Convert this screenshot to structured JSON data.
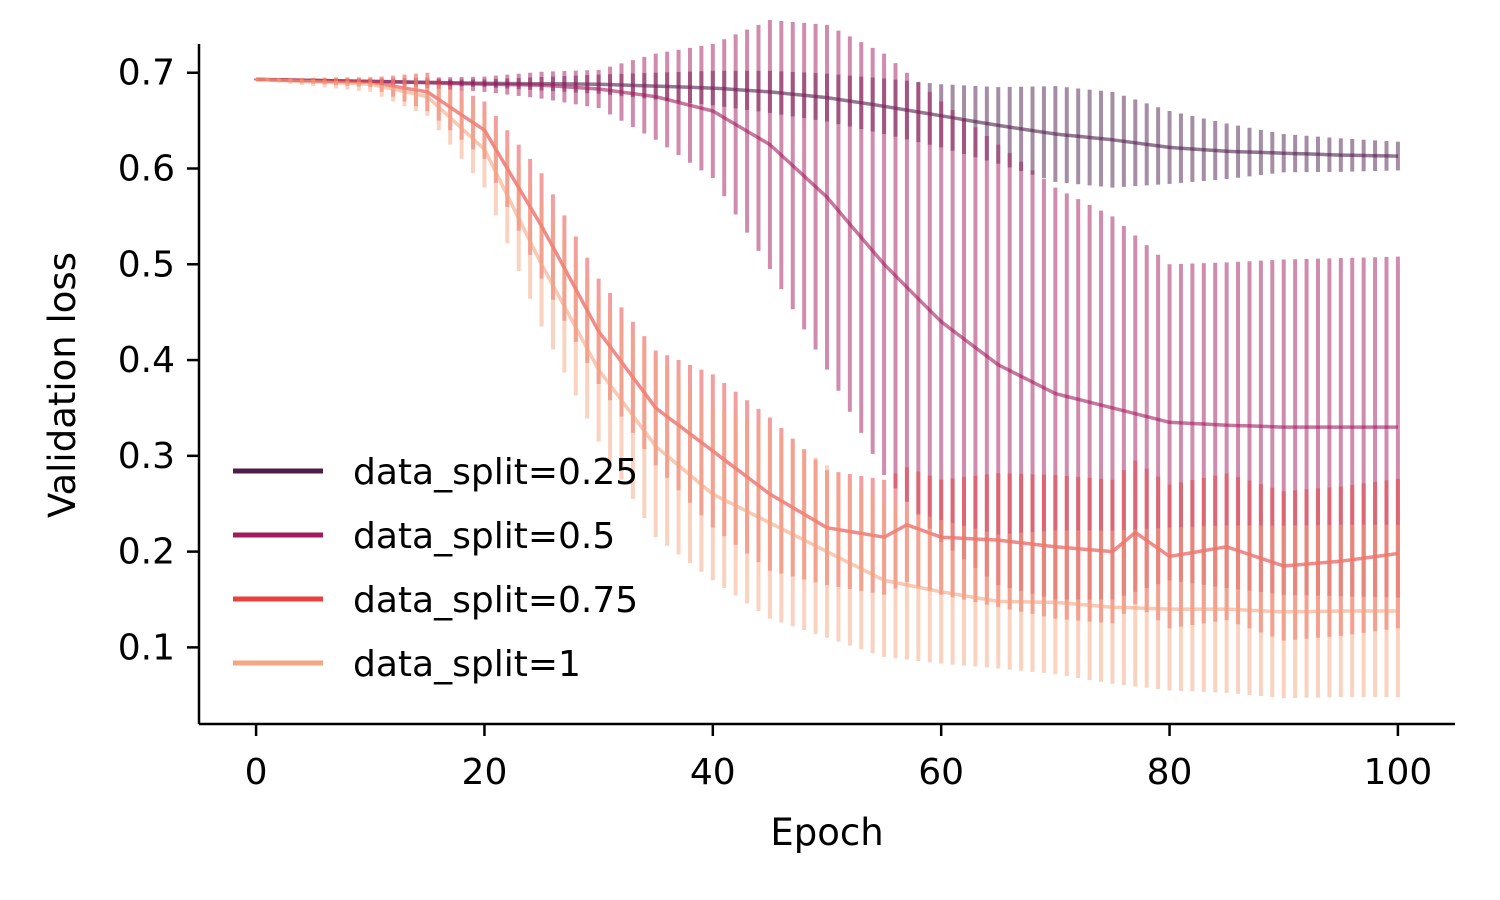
{
  "chart_data": {
    "type": "line",
    "title": "",
    "xlabel": "Epoch",
    "ylabel": "Validation loss",
    "xlim": [
      -5,
      105
    ],
    "ylim": [
      0.02,
      0.73
    ],
    "xticks": [
      0,
      20,
      40,
      60,
      80,
      100
    ],
    "yticks": [
      0.1,
      0.2,
      0.3,
      0.4,
      0.5,
      0.6,
      0.7
    ],
    "xtick_labels": [
      "0",
      "20",
      "40",
      "60",
      "80",
      "100"
    ],
    "ytick_labels": [
      "0.1",
      "0.2",
      "0.3",
      "0.4",
      "0.5",
      "0.6",
      "0.7"
    ],
    "grid": false,
    "legend_position": "lower-left",
    "error_bars": "vertical",
    "series": [
      {
        "name": "data_split=0.25",
        "color": "#4c1d4b",
        "anchors": [
          [
            0,
            0.693
          ],
          [
            10,
            0.691
          ],
          [
            20,
            0.689
          ],
          [
            30,
            0.688
          ],
          [
            40,
            0.684
          ],
          [
            45,
            0.68
          ],
          [
            50,
            0.674
          ],
          [
            55,
            0.665
          ],
          [
            60,
            0.655
          ],
          [
            65,
            0.645
          ],
          [
            70,
            0.636
          ],
          [
            75,
            0.63
          ],
          [
            80,
            0.622
          ],
          [
            85,
            0.618
          ],
          [
            90,
            0.616
          ],
          [
            95,
            0.614
          ],
          [
            100,
            0.613
          ]
        ],
        "err": [
          [
            0,
            0.001
          ],
          [
            10,
            0.002
          ],
          [
            20,
            0.004
          ],
          [
            30,
            0.01
          ],
          [
            40,
            0.018
          ],
          [
            45,
            0.022
          ],
          [
            50,
            0.025
          ],
          [
            60,
            0.033
          ],
          [
            65,
            0.04
          ],
          [
            70,
            0.05
          ],
          [
            75,
            0.05
          ],
          [
            80,
            0.038
          ],
          [
            90,
            0.02
          ],
          [
            100,
            0.015
          ]
        ]
      },
      {
        "name": "data_split=0.5",
        "color": "#a11a5b",
        "anchors": [
          [
            0,
            0.693
          ],
          [
            10,
            0.691
          ],
          [
            20,
            0.688
          ],
          [
            25,
            0.687
          ],
          [
            30,
            0.683
          ],
          [
            35,
            0.675
          ],
          [
            40,
            0.66
          ],
          [
            45,
            0.625
          ],
          [
            50,
            0.57
          ],
          [
            55,
            0.5
          ],
          [
            60,
            0.44
          ],
          [
            65,
            0.395
          ],
          [
            70,
            0.365
          ],
          [
            75,
            0.35
          ],
          [
            80,
            0.335
          ],
          [
            85,
            0.332
          ],
          [
            90,
            0.33
          ],
          [
            95,
            0.33
          ],
          [
            100,
            0.33
          ]
        ],
        "err": [
          [
            0,
            0.001
          ],
          [
            10,
            0.003
          ],
          [
            20,
            0.008
          ],
          [
            30,
            0.02
          ],
          [
            40,
            0.07
          ],
          [
            45,
            0.13
          ],
          [
            50,
            0.18
          ],
          [
            55,
            0.22
          ],
          [
            60,
            0.23
          ],
          [
            65,
            0.23
          ],
          [
            75,
            0.2
          ],
          [
            80,
            0.165
          ],
          [
            90,
            0.175
          ],
          [
            100,
            0.178
          ]
        ]
      },
      {
        "name": "data_split=0.75",
        "color": "#e83f3f",
        "anchors": [
          [
            0,
            0.693
          ],
          [
            10,
            0.69
          ],
          [
            15,
            0.68
          ],
          [
            20,
            0.64
          ],
          [
            25,
            0.54
          ],
          [
            30,
            0.43
          ],
          [
            35,
            0.35
          ],
          [
            40,
            0.305
          ],
          [
            45,
            0.26
          ],
          [
            50,
            0.225
          ],
          [
            55,
            0.215
          ],
          [
            57,
            0.228
          ],
          [
            60,
            0.215
          ],
          [
            65,
            0.212
          ],
          [
            70,
            0.205
          ],
          [
            75,
            0.2
          ],
          [
            77,
            0.22
          ],
          [
            80,
            0.195
          ],
          [
            85,
            0.205
          ],
          [
            90,
            0.185
          ],
          [
            95,
            0.19
          ],
          [
            100,
            0.198
          ]
        ],
        "err": [
          [
            0,
            0.001
          ],
          [
            10,
            0.005
          ],
          [
            15,
            0.02
          ],
          [
            20,
            0.03
          ],
          [
            25,
            0.055
          ],
          [
            30,
            0.055
          ],
          [
            35,
            0.06
          ],
          [
            40,
            0.08
          ],
          [
            45,
            0.08
          ],
          [
            50,
            0.06
          ],
          [
            55,
            0.06
          ],
          [
            60,
            0.06
          ],
          [
            65,
            0.07
          ],
          [
            70,
            0.075
          ],
          [
            80,
            0.075
          ],
          [
            90,
            0.078
          ],
          [
            100,
            0.078
          ]
        ]
      },
      {
        "name": "data_split=1",
        "color": "#f4a582",
        "anchors": [
          [
            0,
            0.693
          ],
          [
            10,
            0.688
          ],
          [
            15,
            0.675
          ],
          [
            20,
            0.62
          ],
          [
            25,
            0.5
          ],
          [
            30,
            0.39
          ],
          [
            35,
            0.31
          ],
          [
            40,
            0.26
          ],
          [
            45,
            0.23
          ],
          [
            50,
            0.2
          ],
          [
            55,
            0.17
          ],
          [
            60,
            0.158
          ],
          [
            65,
            0.148
          ],
          [
            70,
            0.147
          ],
          [
            75,
            0.142
          ],
          [
            80,
            0.14
          ],
          [
            85,
            0.14
          ],
          [
            90,
            0.137
          ],
          [
            95,
            0.138
          ],
          [
            100,
            0.138
          ]
        ],
        "err": [
          [
            0,
            0.001
          ],
          [
            10,
            0.008
          ],
          [
            15,
            0.02
          ],
          [
            20,
            0.04
          ],
          [
            25,
            0.065
          ],
          [
            30,
            0.075
          ],
          [
            35,
            0.095
          ],
          [
            40,
            0.09
          ],
          [
            45,
            0.1
          ],
          [
            50,
            0.09
          ],
          [
            55,
            0.08
          ],
          [
            60,
            0.075
          ],
          [
            65,
            0.07
          ],
          [
            70,
            0.075
          ],
          [
            80,
            0.085
          ],
          [
            90,
            0.09
          ],
          [
            100,
            0.09
          ]
        ]
      }
    ]
  }
}
